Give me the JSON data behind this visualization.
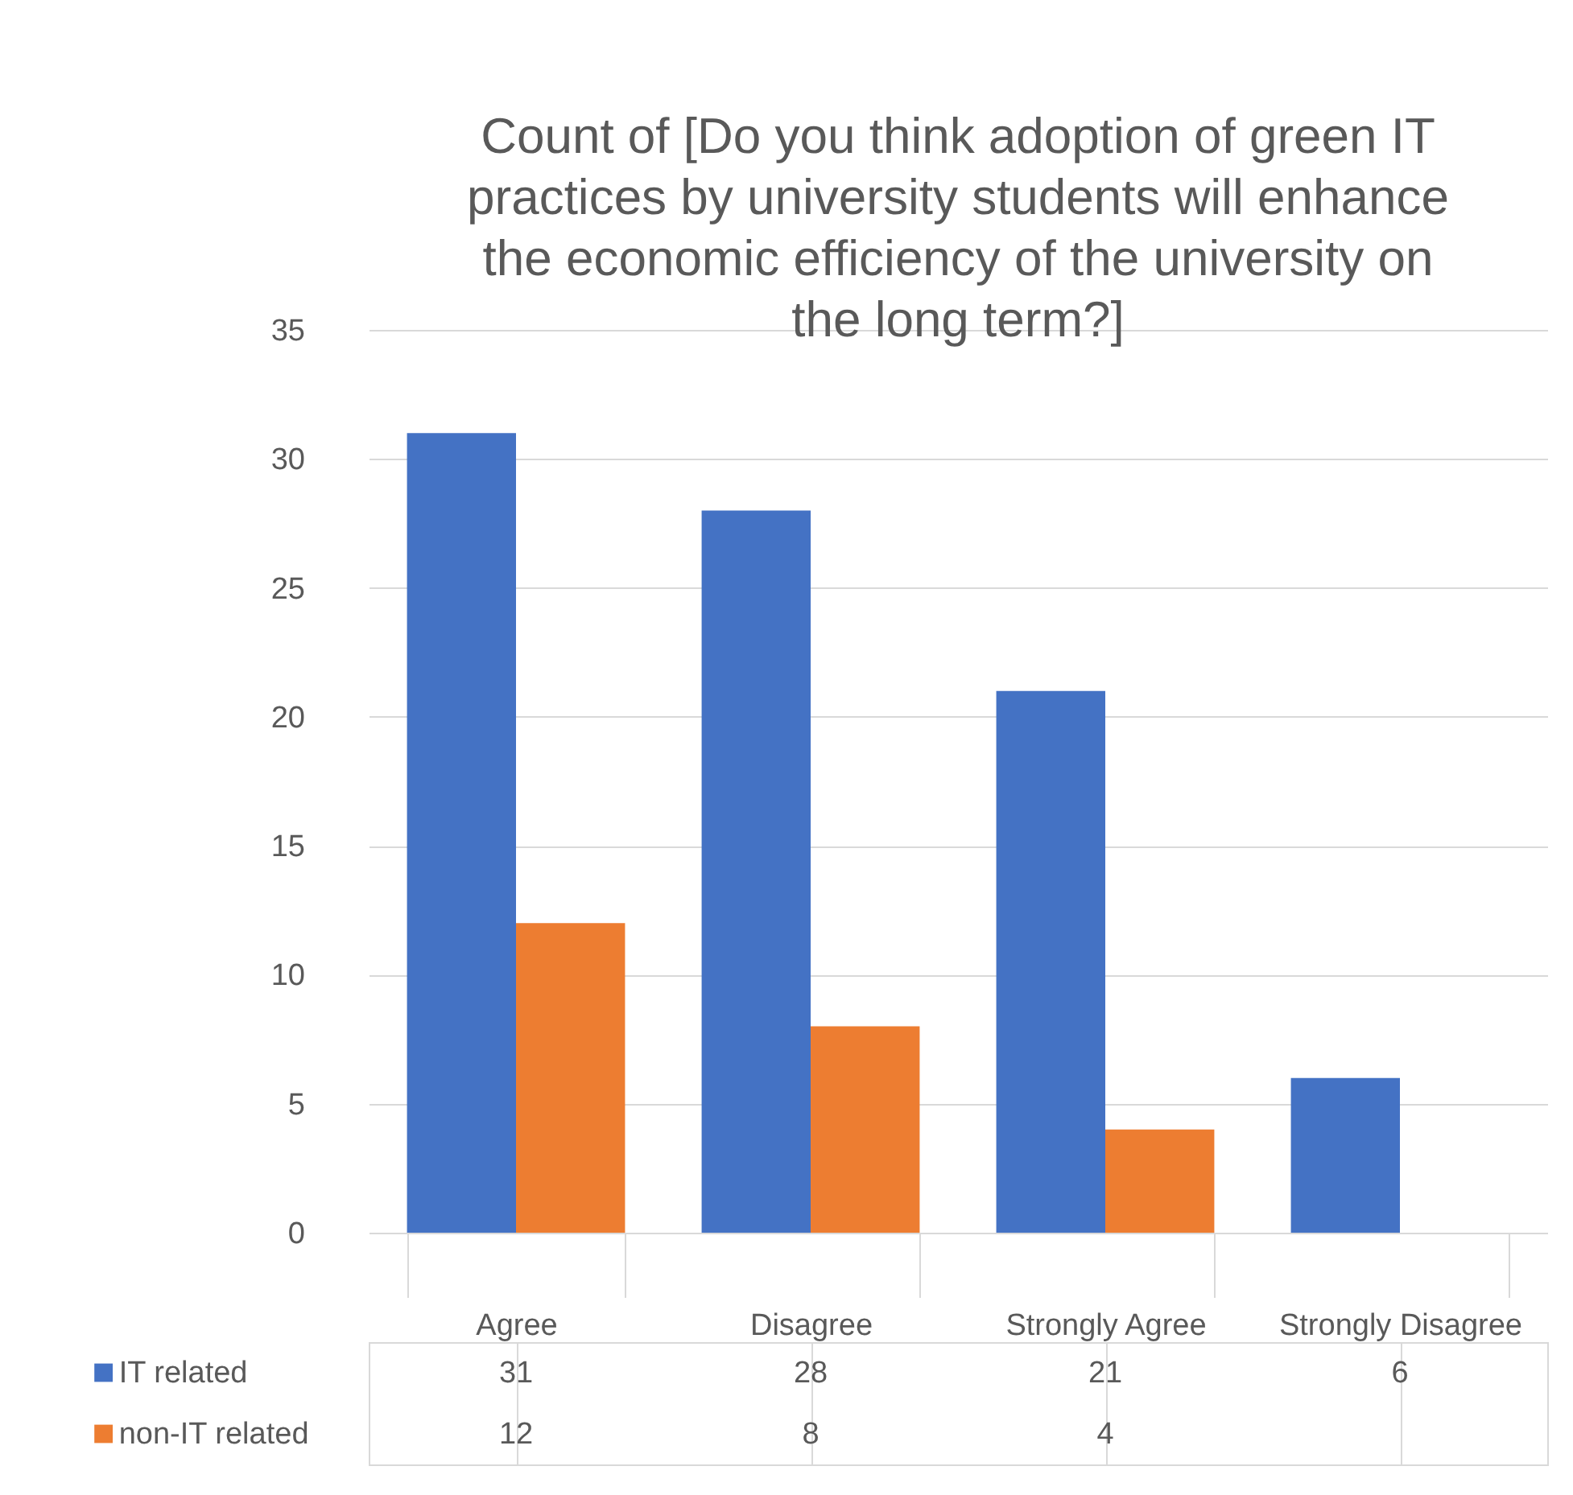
{
  "chart_data": {
    "type": "bar",
    "title": "Count of  [Do you think adoption of green IT practices by university students will enhance the economic efficiency of the university on the long term?]",
    "categories": [
      "Agree",
      "Disagree",
      "Strongly Agree",
      "Strongly Disagree"
    ],
    "series": [
      {
        "name": "IT related",
        "color": "#4472c4",
        "values": [
          31,
          28,
          21,
          6
        ]
      },
      {
        "name": "non-IT related",
        "color": "#ed7d31",
        "values": [
          12,
          8,
          4,
          null
        ]
      }
    ],
    "ylim": [
      0,
      35
    ],
    "yticks": [
      0,
      5,
      10,
      15,
      20,
      25,
      30,
      35
    ],
    "grid": "y",
    "data_labels": true,
    "legend": "bottom"
  }
}
